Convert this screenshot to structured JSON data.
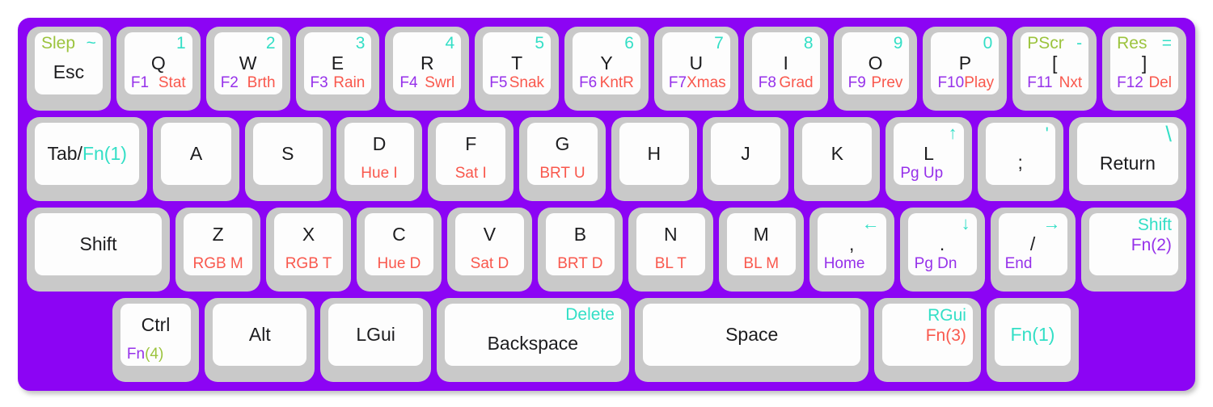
{
  "colors": {
    "board_purple": "#8c04f4",
    "key_border_gray": "#c9c9c9",
    "keycap_white": "#fdfdfd",
    "legend_black": "#1d1d1f",
    "legend_teal": "#33dfc6",
    "legend_green": "#9cc43e",
    "legend_purple": "#9631ea",
    "legend_red": "#f9584d",
    "page_background": "#ffffff"
  },
  "rows": [
    {
      "keys": [
        {
          "id": "esc",
          "w": 1,
          "tl": [
            {
              "t": "Slep",
              "c": "green"
            }
          ],
          "tr": [
            {
              "t": "~",
              "c": "teal"
            }
          ],
          "mid": [
            {
              "t": "Esc",
              "c": "black"
            }
          ]
        },
        {
          "id": "q",
          "w": 1,
          "tr": [
            {
              "t": "1",
              "c": "teal"
            }
          ],
          "mid": [
            {
              "t": "Q",
              "c": "black"
            }
          ],
          "bl": [
            {
              "t": "F1",
              "c": "purple"
            }
          ],
          "br": [
            {
              "t": "Stat",
              "c": "red"
            }
          ]
        },
        {
          "id": "w",
          "w": 1,
          "tr": [
            {
              "t": "2",
              "c": "teal"
            }
          ],
          "mid": [
            {
              "t": "W",
              "c": "black"
            }
          ],
          "bl": [
            {
              "t": "F2",
              "c": "purple"
            }
          ],
          "br": [
            {
              "t": "Brth",
              "c": "red"
            }
          ]
        },
        {
          "id": "e",
          "w": 1,
          "tr": [
            {
              "t": "3",
              "c": "teal"
            }
          ],
          "mid": [
            {
              "t": "E",
              "c": "black"
            }
          ],
          "bl": [
            {
              "t": "F3",
              "c": "purple"
            }
          ],
          "br": [
            {
              "t": "Rain",
              "c": "red"
            }
          ]
        },
        {
          "id": "r",
          "w": 1,
          "tr": [
            {
              "t": "4",
              "c": "teal"
            }
          ],
          "mid": [
            {
              "t": "R",
              "c": "black"
            }
          ],
          "bl": [
            {
              "t": "F4",
              "c": "purple"
            }
          ],
          "br": [
            {
              "t": "Swrl",
              "c": "red"
            }
          ]
        },
        {
          "id": "t",
          "w": 1,
          "tr": [
            {
              "t": "5",
              "c": "teal"
            }
          ],
          "mid": [
            {
              "t": "T",
              "c": "black"
            }
          ],
          "bl": [
            {
              "t": "F5",
              "c": "purple"
            }
          ],
          "br": [
            {
              "t": "Snak",
              "c": "red"
            }
          ]
        },
        {
          "id": "y",
          "w": 1,
          "tr": [
            {
              "t": "6",
              "c": "teal"
            }
          ],
          "mid": [
            {
              "t": "Y",
              "c": "black"
            }
          ],
          "bl": [
            {
              "t": "F6",
              "c": "purple"
            }
          ],
          "br": [
            {
              "t": "KntR",
              "c": "red"
            }
          ]
        },
        {
          "id": "u",
          "w": 1,
          "tr": [
            {
              "t": "7",
              "c": "teal"
            }
          ],
          "mid": [
            {
              "t": "U",
              "c": "black"
            }
          ],
          "bl": [
            {
              "t": "F7",
              "c": "purple"
            }
          ],
          "br": [
            {
              "t": "Xmas",
              "c": "red"
            }
          ]
        },
        {
          "id": "i",
          "w": 1,
          "tr": [
            {
              "t": "8",
              "c": "teal"
            }
          ],
          "mid": [
            {
              "t": "I",
              "c": "black"
            }
          ],
          "bl": [
            {
              "t": "F8",
              "c": "purple"
            }
          ],
          "br": [
            {
              "t": "Grad",
              "c": "red"
            }
          ]
        },
        {
          "id": "o",
          "w": 1,
          "tr": [
            {
              "t": "9",
              "c": "teal"
            }
          ],
          "mid": [
            {
              "t": "O",
              "c": "black"
            }
          ],
          "bl": [
            {
              "t": "F9",
              "c": "purple"
            }
          ],
          "br": [
            {
              "t": "Prev",
              "c": "red"
            }
          ]
        },
        {
          "id": "p",
          "w": 1,
          "tr": [
            {
              "t": "0",
              "c": "teal"
            }
          ],
          "mid": [
            {
              "t": "P",
              "c": "black"
            }
          ],
          "bl": [
            {
              "t": "F10",
              "c": "purple"
            }
          ],
          "br": [
            {
              "t": "Play",
              "c": "red"
            }
          ]
        },
        {
          "id": "lbracket",
          "w": 1,
          "tl": [
            {
              "t": "PScr",
              "c": "green"
            }
          ],
          "tr": [
            {
              "t": "-",
              "c": "teal"
            }
          ],
          "mid": [
            {
              "t": "[",
              "c": "black"
            }
          ],
          "bl": [
            {
              "t": "F11",
              "c": "purple"
            }
          ],
          "br": [
            {
              "t": "Nxt",
              "c": "red"
            }
          ]
        },
        {
          "id": "rbracket",
          "w": 1,
          "tl": [
            {
              "t": "Res",
              "c": "green"
            }
          ],
          "tr": [
            {
              "t": "=",
              "c": "teal"
            }
          ],
          "mid": [
            {
              "t": "]",
              "c": "black"
            }
          ],
          "bl": [
            {
              "t": "F12",
              "c": "purple"
            }
          ],
          "br": [
            {
              "t": "Del",
              "c": "red"
            }
          ]
        }
      ]
    },
    {
      "keys": [
        {
          "id": "tab",
          "w": 1.5,
          "mid": [
            {
              "t": "Tab/",
              "c": "black"
            },
            {
              "t": "Fn(1)",
              "c": "teal"
            }
          ]
        },
        {
          "id": "a",
          "w": 1,
          "mid": [
            {
              "t": "A",
              "c": "black"
            }
          ]
        },
        {
          "id": "s",
          "w": 1,
          "mid": [
            {
              "t": "S",
              "c": "black"
            }
          ]
        },
        {
          "id": "d",
          "w": 1,
          "mid": [
            {
              "t": "D",
              "c": "black"
            }
          ],
          "bc": [
            {
              "t": "Hue I",
              "c": "red"
            }
          ]
        },
        {
          "id": "f",
          "w": 1,
          "mid": [
            {
              "t": "F",
              "c": "black"
            }
          ],
          "bc": [
            {
              "t": "Sat I",
              "c": "red"
            }
          ]
        },
        {
          "id": "g",
          "w": 1,
          "mid": [
            {
              "t": "G",
              "c": "black"
            }
          ],
          "bc": [
            {
              "t": "BRT U",
              "c": "red"
            }
          ]
        },
        {
          "id": "h",
          "w": 1,
          "mid": [
            {
              "t": "H",
              "c": "black"
            }
          ]
        },
        {
          "id": "j",
          "w": 1,
          "mid": [
            {
              "t": "J",
              "c": "black"
            }
          ]
        },
        {
          "id": "k",
          "w": 1,
          "mid": [
            {
              "t": "K",
              "c": "black"
            }
          ]
        },
        {
          "id": "l",
          "w": 1,
          "tr": [
            {
              "t": "↑",
              "c": "teal"
            }
          ],
          "mid": [
            {
              "t": "L",
              "c": "black"
            }
          ],
          "bl": [
            {
              "t": "Pg Up",
              "c": "purple"
            }
          ]
        },
        {
          "id": "semicolon",
          "w": 1,
          "tr": [
            {
              "t": "'",
              "c": "teal"
            }
          ],
          "mid": [
            {
              "t": ";",
              "c": "black"
            }
          ]
        },
        {
          "id": "return",
          "w": 1.45,
          "tr": [
            {
              "t": "\\",
              "c": "teal"
            }
          ],
          "mid": [
            {
              "t": "Return",
              "c": "black"
            }
          ]
        }
      ]
    },
    {
      "keys": [
        {
          "id": "lshift",
          "w": 1.85,
          "mid": [
            {
              "t": "Shift",
              "c": "black"
            }
          ]
        },
        {
          "id": "z",
          "w": 1,
          "mid": [
            {
              "t": "Z",
              "c": "black"
            }
          ],
          "bc": [
            {
              "t": "RGB M",
              "c": "red"
            }
          ]
        },
        {
          "id": "x",
          "w": 1,
          "mid": [
            {
              "t": "X",
              "c": "black"
            }
          ],
          "bc": [
            {
              "t": "RGB T",
              "c": "red"
            }
          ]
        },
        {
          "id": "c",
          "w": 1,
          "mid": [
            {
              "t": "C",
              "c": "black"
            }
          ],
          "bc": [
            {
              "t": "Hue D",
              "c": "red"
            }
          ]
        },
        {
          "id": "v",
          "w": 1,
          "mid": [
            {
              "t": "V",
              "c": "black"
            }
          ],
          "bc": [
            {
              "t": "Sat D",
              "c": "red"
            }
          ]
        },
        {
          "id": "b",
          "w": 1,
          "mid": [
            {
              "t": "B",
              "c": "black"
            }
          ],
          "bc": [
            {
              "t": "BRT D",
              "c": "red"
            }
          ]
        },
        {
          "id": "n",
          "w": 1,
          "mid": [
            {
              "t": "N",
              "c": "black"
            }
          ],
          "bc": [
            {
              "t": "BL T",
              "c": "red"
            }
          ]
        },
        {
          "id": "m",
          "w": 1,
          "mid": [
            {
              "t": "M",
              "c": "black"
            }
          ],
          "bc": [
            {
              "t": "BL M",
              "c": "red"
            }
          ]
        },
        {
          "id": "comma",
          "w": 1,
          "tr": [
            {
              "t": "←",
              "c": "teal"
            }
          ],
          "mid": [
            {
              "t": ",",
              "c": "black"
            }
          ],
          "bl": [
            {
              "t": "Home",
              "c": "purple"
            }
          ]
        },
        {
          "id": "period",
          "w": 1,
          "tr": [
            {
              "t": "↓",
              "c": "teal"
            }
          ],
          "mid": [
            {
              "t": ".",
              "c": "black"
            }
          ],
          "bl": [
            {
              "t": "Pg Dn",
              "c": "purple"
            }
          ]
        },
        {
          "id": "slash",
          "w": 1,
          "tr": [
            {
              "t": "→",
              "c": "teal"
            }
          ],
          "mid": [
            {
              "t": "/",
              "c": "black"
            }
          ],
          "bl": [
            {
              "t": "End",
              "c": "purple"
            }
          ]
        },
        {
          "id": "rshift",
          "w": 1.3,
          "trstack": [
            {
              "t": "Shift",
              "c": "teal"
            },
            {
              "t": "Fn(2)",
              "c": "purple"
            }
          ]
        }
      ]
    },
    {
      "keys": [
        {
          "id": "row4-left-gap",
          "w": 1.02,
          "spacer": true
        },
        {
          "id": "ctrl",
          "w": 0.9,
          "mid": [
            {
              "t": "Ctrl",
              "c": "black"
            }
          ],
          "bl": [
            {
              "t": "Fn",
              "c": "purple"
            },
            {
              "t": "(4)",
              "c": "green"
            }
          ]
        },
        {
          "id": "alt",
          "w": 1.2,
          "mid": [
            {
              "t": "Alt",
              "c": "black"
            }
          ]
        },
        {
          "id": "lgui",
          "w": 1.2,
          "mid": [
            {
              "t": "LGui",
              "c": "black"
            }
          ]
        },
        {
          "id": "backspace",
          "w": 2.25,
          "tr": [
            {
              "t": "Delete",
              "c": "teal"
            }
          ],
          "mid": [
            {
              "t": "Backspace",
              "c": "black"
            }
          ]
        },
        {
          "id": "space",
          "w": 2.78,
          "mid": [
            {
              "t": "Space",
              "c": "black"
            }
          ]
        },
        {
          "id": "fn3",
          "w": 1.15,
          "trstack": [
            {
              "t": "RGui",
              "c": "teal"
            },
            {
              "t": "Fn(3)",
              "c": "red"
            }
          ]
        },
        {
          "id": "fn1",
          "w": 0.97,
          "mid": [
            {
              "t": "Fn(1)",
              "c": "teal"
            }
          ]
        },
        {
          "id": "row4-right-gap",
          "w": 1.3,
          "spacer": true
        }
      ]
    }
  ]
}
